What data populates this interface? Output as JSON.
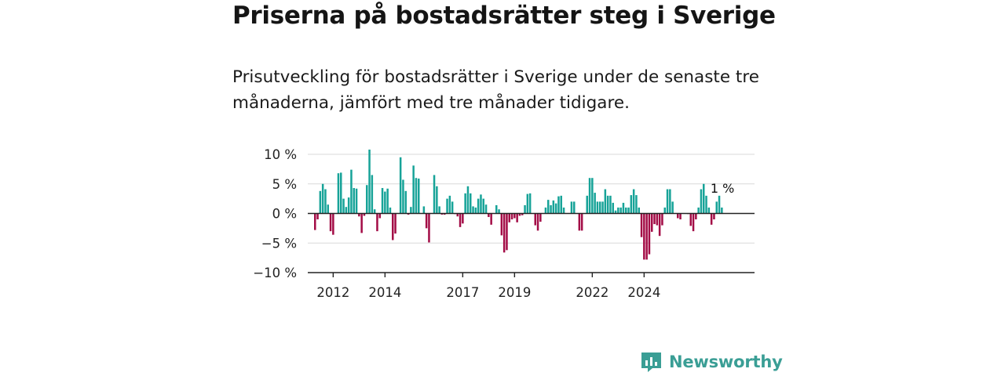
{
  "title": "Priserna på bostadsrätter steg i Sverige",
  "subtitle": "Prisutveckling för bostadsrätter i Sverige under de senaste tre månaderna, jämfört med tre månader tidigare.",
  "brand": {
    "name": "Newsworthy",
    "icon": "newsworthy-logo-icon",
    "color": "#3a9e95"
  },
  "chart_data": {
    "type": "bar",
    "ylim": [
      -10,
      10
    ],
    "y_ticks": [
      10,
      5,
      0,
      -5,
      -10
    ],
    "y_tick_labels": [
      "10 %",
      "5 %",
      "0 %",
      "−5 %",
      "−10 %"
    ],
    "x_tick_labels": [
      "2012",
      "2014",
      "2017",
      "2019",
      "2022",
      "2024"
    ],
    "x_tick_positions": [
      7,
      27,
      57,
      77,
      107,
      127
    ],
    "last_value_label": "1 %",
    "positive_color": "#17a398",
    "negative_color": "#a30c46",
    "grid": true,
    "values": [
      -2.8,
      -1,
      3.8,
      5,
      4.1,
      1.5,
      -3,
      -3.6,
      0,
      6.8,
      6.9,
      2.5,
      1.1,
      2.7,
      7.4,
      4.3,
      4.2,
      -0.5,
      -3.3,
      -0.4,
      4.8,
      10.8,
      6.5,
      0.7,
      -3,
      -0.8,
      4.3,
      3.7,
      4.2,
      1,
      -4.5,
      -3.4,
      0,
      9.5,
      5.7,
      3.8,
      -0.2,
      1.1,
      8.1,
      6,
      5.9,
      0,
      1.2,
      -2.5,
      -4.9,
      0,
      6.5,
      4.6,
      1.2,
      -0.2,
      -0.2,
      2.5,
      3,
      2,
      -0.1,
      -0.5,
      -2.3,
      -1.7,
      3.4,
      4.6,
      3.4,
      1.2,
      1,
      2.5,
      3.2,
      2.5,
      1.5,
      -0.6,
      -1.9,
      0,
      1.4,
      0.7,
      -3.7,
      -6.6,
      -6.2,
      -1.5,
      -1,
      -0.8,
      -1.5,
      -0.4,
      -0.3,
      1.4,
      3.3,
      3.4,
      0,
      -2,
      -2.9,
      -1.4,
      0,
      1,
      2.3,
      1.4,
      2.2,
      1.7,
      2.9,
      3,
      1,
      0,
      0,
      2,
      2,
      0,
      -2.9,
      -2.9,
      0,
      3,
      6,
      6,
      3.5,
      2,
      2,
      2,
      4.1,
      3,
      3,
      1.8,
      0.5,
      1,
      1,
      1.8,
      1,
      1,
      3.1,
      4.1,
      3.1,
      1,
      -4,
      -7.8,
      -7.8,
      -6.9,
      -3.1,
      -1.8,
      -2,
      -3.8,
      -2,
      1,
      4.1,
      4.1,
      2,
      0,
      -0.8,
      -1,
      0,
      0,
      -0.1,
      -2.1,
      -3,
      -1,
      1,
      4.1,
      5,
      3,
      1,
      -1.9,
      -1,
      2,
      3,
      1
    ]
  }
}
